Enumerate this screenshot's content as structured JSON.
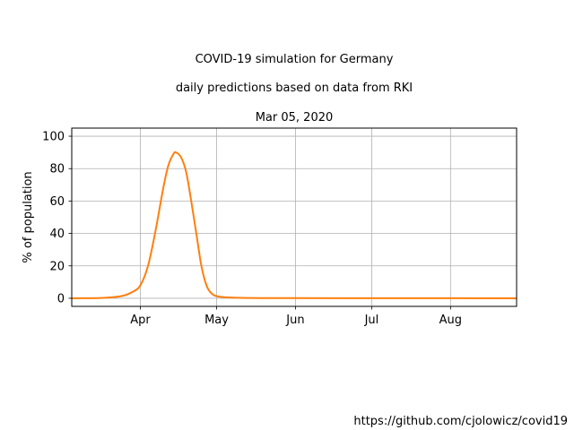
{
  "chart_data": {
    "type": "line",
    "title_lines": [
      "COVID-19 simulation for Germany",
      "daily predictions based on data from RKI",
      "Mar 05, 2020"
    ],
    "xlabel": "",
    "ylabel": "% of population",
    "x_axis": {
      "type": "date",
      "range": [
        "2020-03-05",
        "2020-08-27"
      ],
      "ticks": [
        {
          "date": "2020-04-01",
          "label": "Apr"
        },
        {
          "date": "2020-05-01",
          "label": "May"
        },
        {
          "date": "2020-06-01",
          "label": "Jun"
        },
        {
          "date": "2020-07-01",
          "label": "Jul"
        },
        {
          "date": "2020-08-01",
          "label": "Aug"
        }
      ]
    },
    "y_axis": {
      "range": [
        -5,
        105
      ],
      "ticks": [
        0,
        20,
        40,
        60,
        80,
        100
      ]
    },
    "grid": true,
    "series": [
      {
        "color": "#ff7f0e",
        "points": [
          {
            "x": "2020-03-05",
            "y": 0
          },
          {
            "x": "2020-03-15",
            "y": 0.1
          },
          {
            "x": "2020-03-20",
            "y": 0.5
          },
          {
            "x": "2020-03-25",
            "y": 1.5
          },
          {
            "x": "2020-03-29",
            "y": 4
          },
          {
            "x": "2020-04-01",
            "y": 8
          },
          {
            "x": "2020-04-04",
            "y": 20
          },
          {
            "x": "2020-04-07",
            "y": 42
          },
          {
            "x": "2020-04-10",
            "y": 68
          },
          {
            "x": "2020-04-12",
            "y": 82
          },
          {
            "x": "2020-04-14",
            "y": 89
          },
          {
            "x": "2020-04-15",
            "y": 90
          },
          {
            "x": "2020-04-17",
            "y": 87
          },
          {
            "x": "2020-04-19",
            "y": 78
          },
          {
            "x": "2020-04-21",
            "y": 60
          },
          {
            "x": "2020-04-23",
            "y": 40
          },
          {
            "x": "2020-04-25",
            "y": 20
          },
          {
            "x": "2020-04-27",
            "y": 8
          },
          {
            "x": "2020-04-29",
            "y": 3
          },
          {
            "x": "2020-05-02",
            "y": 1
          },
          {
            "x": "2020-05-10",
            "y": 0.3
          },
          {
            "x": "2020-06-01",
            "y": 0.1
          },
          {
            "x": "2020-08-27",
            "y": 0
          }
        ]
      }
    ],
    "footnote": "https://github.com/cjolowicz/covid19"
  }
}
